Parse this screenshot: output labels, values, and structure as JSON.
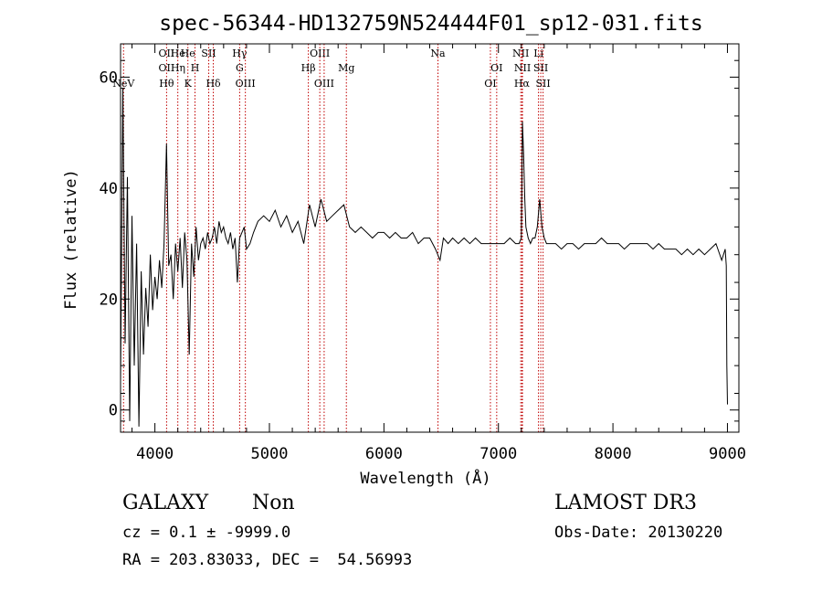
{
  "chart_data": {
    "type": "line",
    "title": "spec-56344-HD132759N524444F01_sp12-031.fits",
    "xlabel": "Wavelength (Å)",
    "ylabel": "Flux (relative)",
    "xlim": [
      3700,
      9100
    ],
    "ylim": [
      -4,
      66
    ],
    "xticks": [
      4000,
      5000,
      6000,
      7000,
      8000,
      9000
    ],
    "xtick_labels": [
      "4000",
      "5000",
      "6000",
      "7000",
      "8000",
      "9000"
    ],
    "yticks": [
      0,
      20,
      40,
      60
    ],
    "ytick_labels": [
      "0",
      "20",
      "40",
      "60"
    ],
    "grid": false,
    "series": [
      {
        "name": "flux",
        "x": [
          3700,
          3720,
          3740,
          3760,
          3780,
          3800,
          3820,
          3840,
          3860,
          3880,
          3900,
          3920,
          3940,
          3960,
          3980,
          4000,
          4020,
          4040,
          4060,
          4080,
          4101,
          4120,
          4140,
          4160,
          4180,
          4200,
          4220,
          4240,
          4260,
          4280,
          4300,
          4320,
          4340,
          4360,
          4380,
          4400,
          4420,
          4440,
          4460,
          4480,
          4500,
          4520,
          4540,
          4560,
          4580,
          4600,
          4620,
          4640,
          4660,
          4680,
          4700,
          4720,
          4740,
          4760,
          4780,
          4800,
          4830,
          4861,
          4900,
          4950,
          5000,
          5050,
          5100,
          5150,
          5200,
          5250,
          5300,
          5350,
          5400,
          5450,
          5500,
          5550,
          5600,
          5650,
          5700,
          5750,
          5800,
          5850,
          5900,
          5950,
          6000,
          6050,
          6100,
          6150,
          6200,
          6250,
          6300,
          6350,
          6400,
          6450,
          6490,
          6520,
          6560,
          6600,
          6650,
          6700,
          6750,
          6800,
          6850,
          6900,
          6950,
          7000,
          7050,
          7100,
          7150,
          7180,
          7200,
          7210,
          7220,
          7230,
          7240,
          7260,
          7280,
          7300,
          7320,
          7340,
          7360,
          7380,
          7400,
          7420,
          7450,
          7500,
          7550,
          7600,
          7650,
          7700,
          7750,
          7800,
          7850,
          7900,
          7950,
          8000,
          8050,
          8100,
          8150,
          8200,
          8250,
          8300,
          8350,
          8400,
          8450,
          8500,
          8550,
          8600,
          8650,
          8700,
          8750,
          8800,
          8850,
          8900,
          8950,
          8980,
          8990,
          8995,
          9000
        ],
        "y": [
          5,
          58,
          12,
          42,
          -2,
          35,
          8,
          30,
          -3,
          25,
          10,
          22,
          15,
          28,
          18,
          24,
          20,
          27,
          22,
          30,
          48,
          26,
          28,
          20,
          30,
          25,
          31,
          22,
          32,
          27,
          10,
          30,
          24,
          33,
          27,
          30,
          31,
          29,
          32,
          30,
          31,
          33,
          30,
          34,
          32,
          33,
          31,
          30,
          32,
          29,
          31,
          23,
          31,
          32,
          33,
          29,
          30,
          32,
          34,
          35,
          34,
          36,
          33,
          35,
          32,
          34,
          30,
          37,
          33,
          38,
          34,
          35,
          36,
          37,
          33,
          32,
          33,
          32,
          31,
          32,
          32,
          31,
          32,
          31,
          31,
          32,
          30,
          31,
          31,
          29,
          27,
          31,
          30,
          31,
          30,
          31,
          30,
          31,
          30,
          30,
          30,
          30,
          30,
          31,
          30,
          30,
          31,
          52,
          46,
          38,
          33,
          31,
          30,
          31,
          31,
          33,
          38,
          33,
          31,
          30,
          30,
          30,
          29,
          30,
          30,
          29,
          30,
          30,
          30,
          31,
          30,
          30,
          30,
          29,
          30,
          30,
          30,
          30,
          29,
          30,
          29,
          29,
          29,
          28,
          29,
          28,
          29,
          28,
          29,
          30,
          27,
          29,
          26,
          8,
          1
        ]
      }
    ],
    "line_markers": [
      {
        "label": "NeV",
        "x": 3726,
        "row": 2
      },
      {
        "label": "OII",
        "x": 4102,
        "row": 0
      },
      {
        "label": "OII",
        "x": 4102,
        "row": 1
      },
      {
        "label": "Hθ",
        "x": 4102,
        "row": 2
      },
      {
        "label": "He",
        "x": 4200,
        "row": 0
      },
      {
        "label": "Hη",
        "x": 4202,
        "row": 1
      },
      {
        "label": "He",
        "x": 4288,
        "row": 0
      },
      {
        "label": "K",
        "x": 4288,
        "row": 2
      },
      {
        "label": "H",
        "x": 4350,
        "row": 1
      },
      {
        "label": "SII",
        "x": 4470,
        "row": 0
      },
      {
        "label": "Hδ",
        "x": 4510,
        "row": 2
      },
      {
        "label": "Hγ",
        "x": 4740,
        "row": 0
      },
      {
        "label": "G",
        "x": 4740,
        "row": 1
      },
      {
        "label": "OIII",
        "x": 4790,
        "row": 2
      },
      {
        "label": "OIII",
        "x": 5440,
        "row": 0
      },
      {
        "label": "Hβ",
        "x": 5340,
        "row": 1
      },
      {
        "label": "OIII",
        "x": 5478,
        "row": 2
      },
      {
        "label": "Mg",
        "x": 5672,
        "row": 1
      },
      {
        "label": "Na",
        "x": 6472,
        "row": 0
      },
      {
        "label": "OI",
        "x": 6985,
        "row": 1
      },
      {
        "label": "OI",
        "x": 6930,
        "row": 2
      },
      {
        "label": "NII",
        "x": 7195,
        "row": 0
      },
      {
        "label": "NII",
        "x": 7210,
        "row": 1
      },
      {
        "label": "Hα",
        "x": 7205,
        "row": 2
      },
      {
        "label": "Li",
        "x": 7350,
        "row": 0
      },
      {
        "label": "SII",
        "x": 7370,
        "row": 1
      },
      {
        "label": "SII",
        "x": 7390,
        "row": 2
      }
    ]
  },
  "footer": {
    "classification": "GALAXY",
    "subclass": "Non",
    "survey": "LAMOST DR3",
    "cz": "cz = 0.1 ± -9999.0",
    "obs_date": "Obs-Date: 20130220",
    "coords": "RA = 203.83033, DEC =  54.56993"
  }
}
